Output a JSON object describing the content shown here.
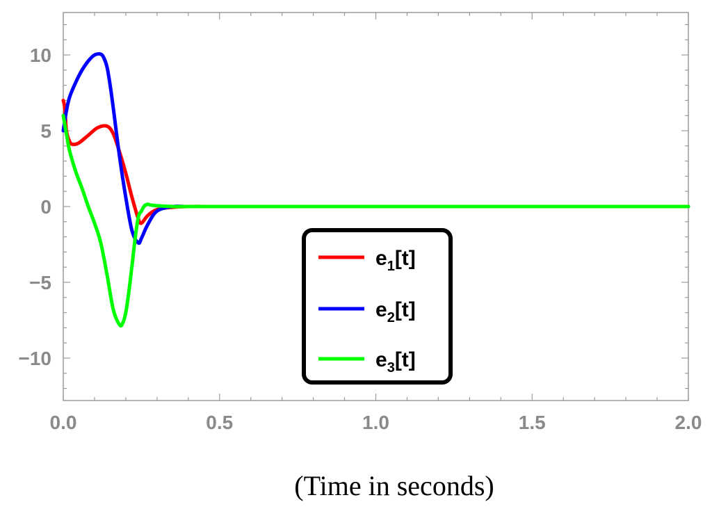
{
  "chart_data": {
    "type": "line",
    "xlabel": "(Time in seconds)",
    "ylabel": "",
    "xlim": [
      0,
      2.0
    ],
    "ylim": [
      -12.8,
      12.8
    ],
    "x_ticks": [
      0.0,
      0.5,
      1.0,
      1.5,
      2.0
    ],
    "x_tick_labels": [
      "0.0",
      "0.5",
      "1.0",
      "1.5",
      "2.0"
    ],
    "y_ticks": [
      10,
      5,
      0,
      -5,
      -10
    ],
    "y_tick_labels": [
      "10",
      "5",
      "0",
      "−5",
      "−10"
    ],
    "grid": false,
    "legend_position": "lower-center",
    "series": [
      {
        "name": "e1[t]",
        "name_base": "e",
        "name_sub": "1",
        "name_rest": "[t]",
        "color": "#ff0000",
        "x": [
          0,
          0.005,
          0.01,
          0.02,
          0.03,
          0.05,
          0.08,
          0.11,
          0.14,
          0.16,
          0.18,
          0.2,
          0.22,
          0.24,
          0.25,
          0.27,
          0.3,
          0.35,
          0.4,
          0.5,
          0.7,
          1.0,
          1.5,
          2.0
        ],
        "y": [
          7,
          6.5,
          5,
          4.3,
          4.1,
          4.2,
          4.7,
          5.2,
          5.3,
          4.8,
          3.6,
          2.2,
          0.6,
          -0.8,
          -1.1,
          -0.6,
          -0.2,
          -0.05,
          0,
          0,
          0,
          0,
          0,
          0
        ]
      },
      {
        "name": "e2[t]",
        "name_base": "e",
        "name_sub": "2",
        "name_rest": "[t]",
        "color": "#0000ff",
        "x": [
          0,
          0.01,
          0.02,
          0.04,
          0.06,
          0.08,
          0.1,
          0.12,
          0.13,
          0.14,
          0.15,
          0.16,
          0.18,
          0.2,
          0.22,
          0.24,
          0.25,
          0.27,
          0.3,
          0.35,
          0.4,
          0.5,
          0.7,
          1.0,
          1.5,
          2.0
        ],
        "y": [
          5,
          6.3,
          7.2,
          8.2,
          9.0,
          9.6,
          10.0,
          10.05,
          9.8,
          9.2,
          8.0,
          6.5,
          3.3,
          0.6,
          -1.6,
          -2.4,
          -2.1,
          -1.2,
          -0.3,
          0,
          0,
          0,
          0,
          0,
          0,
          0
        ]
      },
      {
        "name": "e3[t]",
        "name_base": "e",
        "name_sub": "3",
        "name_rest": "[t]",
        "color": "#00ff00",
        "x": [
          0,
          0.01,
          0.02,
          0.04,
          0.06,
          0.08,
          0.1,
          0.12,
          0.14,
          0.16,
          0.18,
          0.19,
          0.2,
          0.21,
          0.22,
          0.23,
          0.24,
          0.25,
          0.26,
          0.27,
          0.28,
          0.3,
          0.35,
          0.4,
          0.5,
          0.7,
          1.0,
          1.5,
          2.0
        ],
        "y": [
          6,
          4.8,
          3.7,
          2.3,
          1.2,
          0,
          -1.1,
          -2.4,
          -4.5,
          -6.8,
          -7.8,
          -7.7,
          -7.0,
          -5.6,
          -3.9,
          -2.1,
          -0.7,
          -0.3,
          0.05,
          0.15,
          0.1,
          0.05,
          0,
          0,
          0,
          0,
          0,
          0,
          0
        ]
      }
    ]
  }
}
